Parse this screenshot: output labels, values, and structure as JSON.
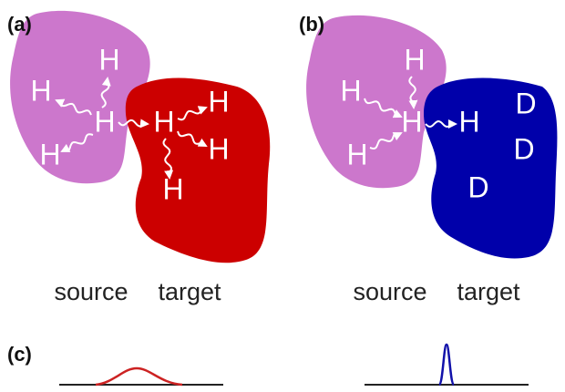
{
  "panels": [
    {
      "label": "(a)",
      "source": "source",
      "target": "target",
      "atoms": [
        "H",
        "H",
        "H",
        "H",
        "H",
        "H",
        "H",
        "H"
      ]
    },
    {
      "label": "(b)",
      "source": "source",
      "target": "target",
      "atoms": [
        "H",
        "H",
        "H",
        "H",
        "H",
        "D",
        "D",
        "D"
      ]
    },
    {
      "label": "(c)"
    }
  ]
}
